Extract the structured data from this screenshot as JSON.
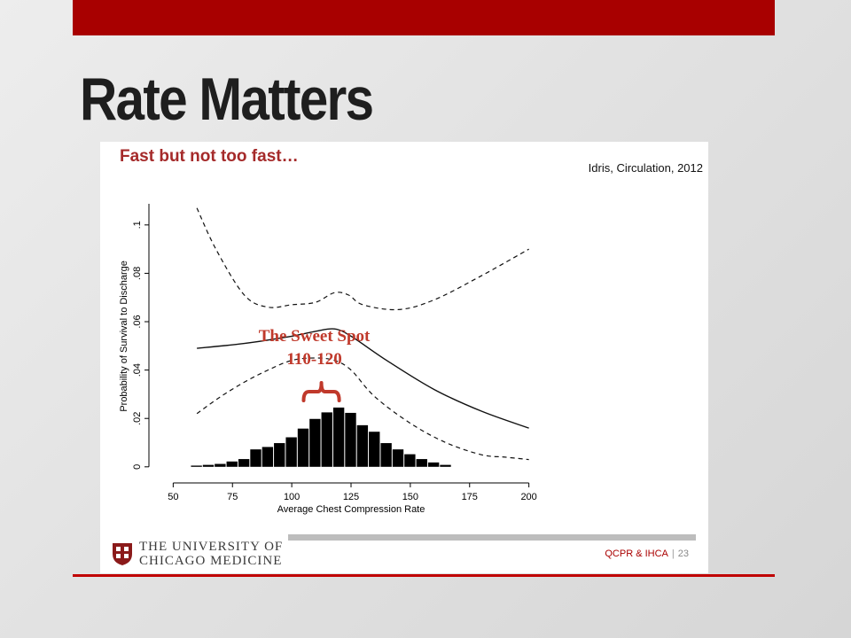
{
  "slide": {
    "title": "Rate Matters"
  },
  "figure": {
    "heading": "Fast but not too fast…",
    "citation": "Idris, Circulation, 2012",
    "annotation": {
      "line1": "The Sweet Spot",
      "line2": "110-120",
      "brace_from": 105,
      "brace_to": 120
    }
  },
  "footer": {
    "university_line1": "THE UNIVERSITY OF",
    "university_line2": "CHICAGO MEDICINE",
    "section": "QCPR & IHCA",
    "separator": "|",
    "page": "23"
  },
  "colors": {
    "accent": "#a80000",
    "heading": "#a52a2a",
    "annotation": "#c0392b"
  },
  "chart_data": {
    "type": "line",
    "xlabel": "Average Chest Compression Rate",
    "ylabel": "Probability of Survival to Discharge",
    "xlim": [
      45,
      205
    ],
    "ylim": [
      -0.003,
      0.108
    ],
    "xticks": [
      50,
      75,
      100,
      125,
      150,
      175,
      200
    ],
    "yticks": [
      0,
      0.02,
      0.04,
      0.06,
      0.08,
      0.1
    ],
    "yticklabels": [
      "0",
      ".02",
      ".04",
      ".06",
      ".08",
      ".1"
    ],
    "series": [
      {
        "style": "solid",
        "x": [
          60,
          80,
          100,
          110,
          118,
          125,
          140,
          160,
          180,
          200
        ],
        "y": [
          0.049,
          0.051,
          0.054,
          0.056,
          0.057,
          0.054,
          0.044,
          0.032,
          0.023,
          0.016
        ]
      },
      {
        "style": "dashed",
        "x": [
          60,
          68,
          80,
          90,
          100,
          110,
          118,
          124,
          130,
          145,
          160,
          180,
          200
        ],
        "y": [
          0.107,
          0.09,
          0.071,
          0.066,
          0.067,
          0.068,
          0.072,
          0.071,
          0.067,
          0.065,
          0.069,
          0.079,
          0.09
        ]
      },
      {
        "style": "dashed",
        "x": [
          60,
          70,
          80,
          90,
          100,
          110,
          118,
          125,
          135,
          150,
          165,
          180,
          190,
          200
        ],
        "y": [
          0.022,
          0.029,
          0.035,
          0.04,
          0.044,
          0.045,
          0.044,
          0.04,
          0.029,
          0.018,
          0.01,
          0.005,
          0.004,
          0.003
        ]
      }
    ],
    "histogram": {
      "x": [
        60,
        65,
        70,
        75,
        80,
        85,
        90,
        95,
        100,
        105,
        110,
        115,
        120,
        125,
        130,
        135,
        140,
        145,
        150,
        155,
        160,
        165
      ],
      "y": [
        0.0005,
        0.0008,
        0.0012,
        0.0022,
        0.0032,
        0.0072,
        0.0082,
        0.0098,
        0.0122,
        0.0158,
        0.0198,
        0.0225,
        0.0245,
        0.0223,
        0.0172,
        0.0145,
        0.0098,
        0.0072,
        0.0052,
        0.0032,
        0.0018,
        0.0008
      ]
    }
  }
}
